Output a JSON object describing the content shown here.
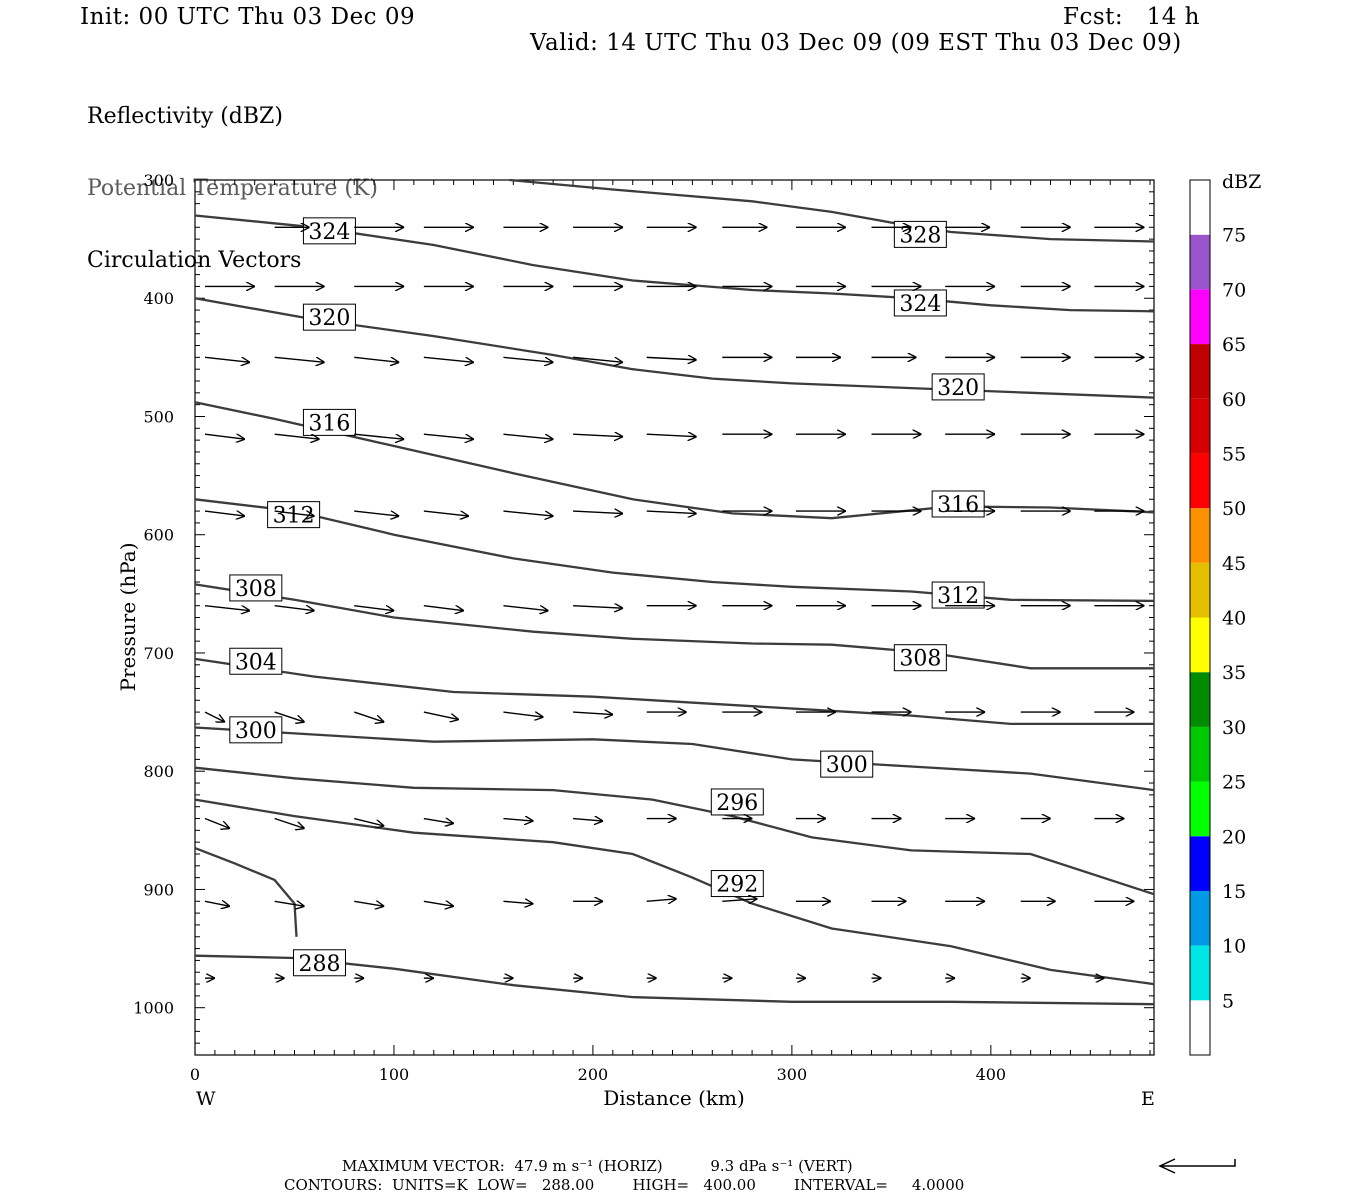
{
  "header": {
    "init": "Init: 00 UTC Thu 03 Dec 09",
    "fcst": "Fcst:   14 h",
    "valid": "Valid: 14 UTC Thu 03 Dec 09 (09 EST Thu 03 Dec 09)"
  },
  "fields": [
    "Reflectivity (dBZ)",
    "Potential Temperature (K)",
    "Circulation Vectors"
  ],
  "footer": {
    "line1": "MAXIMUM VECTOR:  47.9 m s⁻¹ (HORIZ)          9.3 dPa s⁻¹ (VERT)",
    "line2": "CONTOURS:  UNITS=K  LOW=   288.00        HIGH=   400.00        INTERVAL=     4.0000"
  },
  "chart_data": {
    "type": "line",
    "title": "",
    "xlabel": "Distance (km)",
    "ylabel": "Pressure (hPa)",
    "xlim": [
      0,
      482
    ],
    "ylim": [
      1040,
      300
    ],
    "y_scale": "linear, inverted (pressure)",
    "x_ticks": [
      0,
      100,
      200,
      300,
      400
    ],
    "y_ticks": [
      300,
      400,
      500,
      600,
      700,
      800,
      900,
      1000
    ],
    "x_end_labels": {
      "left": "W",
      "right": "E"
    },
    "grid": false,
    "contour_color": "#3c3c3c",
    "isentropes": [
      {
        "theta": 328,
        "points": [
          [
            158,
            300
          ],
          [
            210,
            308
          ],
          [
            280,
            318
          ],
          [
            320,
            327
          ],
          [
            350,
            336
          ],
          [
            380,
            344
          ],
          [
            430,
            350
          ],
          [
            482,
            352
          ]
        ],
        "label_at": [
          [
            352,
            346
          ]
        ]
      },
      {
        "theta": 324,
        "points": [
          [
            0,
            330
          ],
          [
            60,
            340
          ],
          [
            120,
            355
          ],
          [
            170,
            372
          ],
          [
            220,
            385
          ],
          [
            280,
            393
          ],
          [
            320,
            396
          ],
          [
            360,
            400
          ],
          [
            400,
            406
          ],
          [
            440,
            410
          ],
          [
            482,
            411
          ]
        ],
        "label_at": [
          [
            55,
            343
          ],
          [
            352,
            404
          ]
        ]
      },
      {
        "theta": 320,
        "points": [
          [
            0,
            400
          ],
          [
            60,
            418
          ],
          [
            120,
            432
          ],
          [
            180,
            448
          ],
          [
            220,
            460
          ],
          [
            260,
            468
          ],
          [
            300,
            472
          ],
          [
            360,
            476
          ],
          [
            420,
            480
          ],
          [
            482,
            484
          ]
        ],
        "label_at": [
          [
            55,
            416
          ],
          [
            371,
            475
          ]
        ]
      },
      {
        "theta": 316,
        "points": [
          [
            0,
            488
          ],
          [
            40,
            502
          ],
          [
            100,
            525
          ],
          [
            160,
            548
          ],
          [
            220,
            570
          ],
          [
            270,
            582
          ],
          [
            320,
            586
          ],
          [
            380,
            576
          ],
          [
            430,
            577
          ],
          [
            482,
            581
          ]
        ],
        "label_at": [
          [
            55,
            505
          ],
          [
            371,
            574
          ]
        ]
      },
      {
        "theta": 312,
        "points": [
          [
            0,
            570
          ],
          [
            50,
            580
          ],
          [
            100,
            600
          ],
          [
            160,
            620
          ],
          [
            210,
            632
          ],
          [
            260,
            640
          ],
          [
            300,
            644
          ],
          [
            360,
            648
          ],
          [
            410,
            655
          ],
          [
            482,
            656
          ]
        ],
        "label_at": [
          [
            37,
            583
          ],
          [
            371,
            651
          ]
        ]
      },
      {
        "theta": 308,
        "points": [
          [
            0,
            642
          ],
          [
            50,
            655
          ],
          [
            100,
            670
          ],
          [
            170,
            682
          ],
          [
            220,
            688
          ],
          [
            280,
            692
          ],
          [
            320,
            693
          ],
          [
            370,
            700
          ],
          [
            420,
            713
          ],
          [
            482,
            713
          ]
        ],
        "label_at": [
          [
            18,
            645
          ],
          [
            352,
            704
          ]
        ]
      },
      {
        "theta": 304,
        "points": [
          [
            0,
            705
          ],
          [
            60,
            720
          ],
          [
            130,
            733
          ],
          [
            200,
            737
          ],
          [
            260,
            743
          ],
          [
            310,
            748
          ],
          [
            360,
            753
          ],
          [
            410,
            760
          ],
          [
            482,
            760
          ]
        ],
        "label_at": [
          [
            18,
            707
          ]
        ]
      },
      {
        "theta": 300,
        "points": [
          [
            0,
            763
          ],
          [
            50,
            768
          ],
          [
            120,
            775
          ],
          [
            200,
            773
          ],
          [
            250,
            777
          ],
          [
            300,
            790
          ],
          [
            360,
            796
          ],
          [
            420,
            802
          ],
          [
            482,
            816
          ]
        ],
        "label_at": [
          [
            18,
            765
          ],
          [
            315,
            794
          ]
        ]
      },
      {
        "theta": 296,
        "points": [
          [
            0,
            797
          ],
          [
            50,
            806
          ],
          [
            110,
            814
          ],
          [
            180,
            816
          ],
          [
            230,
            824
          ],
          [
            270,
            838
          ],
          [
            310,
            856
          ],
          [
            360,
            867
          ],
          [
            420,
            870
          ],
          [
            482,
            904
          ]
        ],
        "label_at": [
          [
            260,
            826
          ]
        ]
      },
      {
        "theta": 292,
        "points": [
          [
            0,
            824
          ],
          [
            50,
            838
          ],
          [
            110,
            852
          ],
          [
            180,
            860
          ],
          [
            220,
            870
          ],
          [
            250,
            890
          ],
          [
            280,
            912
          ],
          [
            320,
            933
          ],
          [
            380,
            948
          ],
          [
            430,
            968
          ],
          [
            482,
            980
          ]
        ],
        "label_at": [
          [
            260,
            895
          ]
        ]
      },
      {
        "theta": 288,
        "points": [
          [
            0,
            865
          ],
          [
            20,
            878
          ],
          [
            40,
            892
          ],
          [
            50,
            912
          ],
          [
            51,
            940
          ]
        ],
        "label_at": []
      },
      {
        "theta": 288,
        "points": [
          [
            0,
            956
          ],
          [
            50,
            958
          ],
          [
            100,
            967
          ],
          [
            160,
            981
          ],
          [
            220,
            991
          ],
          [
            300,
            995
          ],
          [
            380,
            995
          ],
          [
            482,
            997
          ]
        ],
        "label_at": [
          [
            50,
            962
          ]
        ]
      }
    ],
    "vectors": [
      {
        "p": 340,
        "x": [
          35,
          75,
          110,
          150,
          185,
          222,
          260,
          297,
          335,
          372,
          410,
          447
        ],
        "u": [
          0.7,
          1.0,
          1.0,
          0.9,
          1.0,
          1.0,
          0.9,
          1.0,
          0.8,
          0.9,
          1.0,
          1.0
        ],
        "w": [
          0,
          0,
          0,
          0,
          0,
          0,
          0,
          0,
          0,
          0,
          0,
          0
        ]
      },
      {
        "p": 390,
        "x": [
          0,
          35,
          75,
          110,
          150,
          185,
          222,
          260,
          297,
          335,
          372,
          410,
          447
        ],
        "u": [
          1.0,
          1.0,
          1.0,
          1.0,
          1.0,
          1.0,
          1.0,
          1.0,
          1.0,
          1.0,
          1.0,
          1.0,
          1.0
        ],
        "w": [
          0,
          0,
          0,
          0,
          0,
          0,
          0,
          0,
          0,
          0,
          0,
          0,
          0
        ]
      },
      {
        "p": 450,
        "x": [
          0,
          35,
          75,
          110,
          150,
          185,
          222,
          260,
          297,
          335,
          372,
          410,
          447
        ],
        "u": [
          0.9,
          1.0,
          0.9,
          1.0,
          1.0,
          1.0,
          1.0,
          1.0,
          0.9,
          0.9,
          1.0,
          1.0,
          1.0
        ],
        "w": [
          0.1,
          0.1,
          0.1,
          0.1,
          0.1,
          0.1,
          0.05,
          0,
          0,
          0,
          0,
          0,
          0
        ]
      },
      {
        "p": 515,
        "x": [
          0,
          35,
          75,
          110,
          150,
          185,
          222,
          260,
          297,
          335,
          372,
          410,
          447
        ],
        "u": [
          0.8,
          0.9,
          1.0,
          1.0,
          1.0,
          1.0,
          1.0,
          1.0,
          1.0,
          1.0,
          1.0,
          1.0,
          1.0
        ],
        "w": [
          0.1,
          0.1,
          0.1,
          0.1,
          0.1,
          0.05,
          0.05,
          0,
          0,
          0,
          0,
          0,
          0
        ]
      },
      {
        "p": 580,
        "x": [
          0,
          35,
          75,
          110,
          150,
          185,
          222,
          260,
          297,
          335,
          372,
          410,
          447
        ],
        "u": [
          0.8,
          0.8,
          0.9,
          0.9,
          1.0,
          1.0,
          1.0,
          1.0,
          1.0,
          1.0,
          1.0,
          1.0,
          1.0
        ],
        "w": [
          0.1,
          0.1,
          0.1,
          0.1,
          0.1,
          0.05,
          0.05,
          0,
          0,
          0,
          0,
          0,
          0
        ]
      },
      {
        "p": 660,
        "x": [
          0,
          35,
          75,
          110,
          150,
          185,
          222,
          260,
          297,
          335,
          372,
          410,
          447
        ],
        "u": [
          0.9,
          0.8,
          0.8,
          0.8,
          0.9,
          1.0,
          1.0,
          1.0,
          1.0,
          1.0,
          1.0,
          1.0,
          1.0
        ],
        "w": [
          0.1,
          0.1,
          0.1,
          0.1,
          0.1,
          0.05,
          0,
          0,
          0,
          0,
          0,
          0,
          0
        ]
      },
      {
        "p": 750,
        "x": [
          0,
          35,
          75,
          110,
          150,
          185,
          222,
          260,
          297,
          335,
          372,
          410,
          447
        ],
        "u": [
          0.4,
          0.6,
          0.6,
          0.7,
          0.8,
          0.8,
          0.8,
          0.8,
          0.8,
          0.8,
          0.8,
          0.8,
          0.8
        ],
        "w": [
          0.2,
          0.2,
          0.2,
          0.15,
          0.1,
          0.05,
          0,
          0,
          0,
          0,
          0,
          0,
          0
        ]
      },
      {
        "p": 840,
        "x": [
          0,
          35,
          75,
          110,
          150,
          185,
          222,
          260,
          297,
          335,
          372,
          410,
          447
        ],
        "u": [
          0.5,
          0.6,
          0.6,
          0.6,
          0.6,
          0.6,
          0.6,
          0.6,
          0.6,
          0.6,
          0.6,
          0.6,
          0.6
        ],
        "w": [
          0.2,
          0.2,
          0.15,
          0.1,
          0.05,
          0.05,
          0,
          0,
          0,
          0,
          0,
          0,
          0
        ]
      },
      {
        "p": 910,
        "x": [
          0,
          35,
          75,
          110,
          150,
          185,
          222,
          260,
          297,
          335,
          372,
          410,
          447
        ],
        "u": [
          0.5,
          0.6,
          0.6,
          0.6,
          0.6,
          0.6,
          0.6,
          0.7,
          0.7,
          0.7,
          0.8,
          0.7,
          0.8
        ],
        "w": [
          0.1,
          0.1,
          0.1,
          0.1,
          0.05,
          0,
          -0.05,
          -0.05,
          0,
          0,
          0,
          0,
          0
        ]
      },
      {
        "p": 975,
        "x": [
          0,
          35,
          75,
          110,
          150,
          185,
          222,
          260,
          297,
          335,
          372,
          410,
          447
        ],
        "u": [
          0.2,
          0.2,
          0.2,
          0.2,
          0.2,
          0.2,
          0.2,
          0.2,
          0.2,
          0.2,
          0.2,
          0.2,
          0.2
        ],
        "w": [
          0,
          0,
          0,
          0,
          0,
          0,
          0,
          0,
          0,
          0,
          0,
          0,
          0
        ]
      }
    ],
    "colorbar": {
      "label": "dBZ",
      "levels": [
        5,
        10,
        15,
        20,
        25,
        30,
        35,
        40,
        45,
        50,
        55,
        60,
        65,
        70,
        75
      ],
      "colors": [
        "#ffffff",
        "#00e5e5",
        "#0099e5",
        "#0000ff",
        "#00ff00",
        "#00c800",
        "#008c00",
        "#ffff00",
        "#e5c000",
        "#ff9000",
        "#ff0000",
        "#d60000",
        "#c00000",
        "#ff00ff",
        "#9955cc",
        "#ffffff"
      ]
    },
    "max_vector_arrow": "left"
  }
}
